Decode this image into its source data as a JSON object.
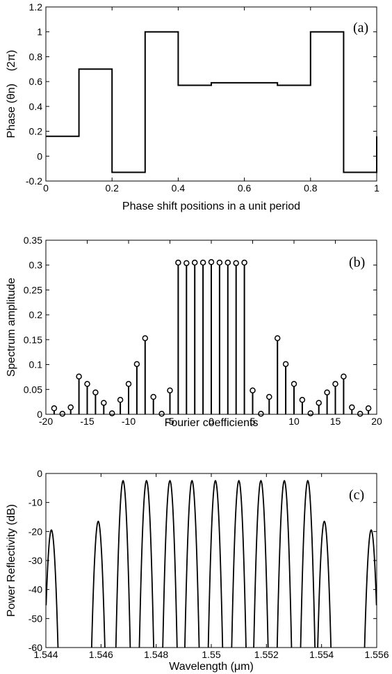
{
  "chart_data": [
    {
      "type": "line",
      "subtype": "step",
      "panel_label": "(a)",
      "xlabel": "Phase shift positions in a unit period",
      "ylabel": "Phase (θn)    (2π)",
      "xlim": [
        0,
        1
      ],
      "ylim": [
        -0.2,
        1.2
      ],
      "xticks": [
        0,
        0.2,
        0.4,
        0.6,
        0.8,
        1
      ],
      "xtick_labels": [
        "0",
        "0.2",
        "0.4",
        "0.6",
        "0.8",
        "1"
      ],
      "yticks": [
        -0.2,
        0,
        0.2,
        0.4,
        0.6,
        0.8,
        1,
        1.2
      ],
      "ytick_labels": [
        "-0.2",
        "0",
        "0.2",
        "0.4",
        "0.6",
        "0.8",
        "1",
        "1.2"
      ],
      "grid": false,
      "series": [
        {
          "x": [
            0,
            0.1,
            0.2,
            0.3,
            0.4,
            0.5,
            0.7,
            0.8,
            0.9,
            1.0
          ],
          "values": [
            0.16,
            0.7,
            -0.13,
            1.0,
            0.57,
            0.59,
            0.57,
            1.0,
            -0.13,
            0.16
          ]
        }
      ]
    },
    {
      "type": "stem",
      "panel_label": "(b)",
      "xlabel": "Fourier coefficients",
      "ylabel": "Spectrum amplitude",
      "xlim": [
        -20,
        20
      ],
      "ylim": [
        0,
        0.35
      ],
      "xticks": [
        -20,
        -15,
        -10,
        -5,
        0,
        5,
        10,
        15,
        20
      ],
      "xtick_labels": [
        "-20",
        "-15",
        "-10",
        "-5",
        "0",
        "5",
        "10",
        "15",
        "20"
      ],
      "yticks": [
        0,
        0.05,
        0.1,
        0.15,
        0.2,
        0.25,
        0.3,
        0.35
      ],
      "ytick_labels": [
        "0",
        "0.05",
        "0.1",
        "0.15",
        "0.2",
        "0.25",
        "0.3",
        "0.35"
      ],
      "grid": false,
      "x": [
        -19,
        -18,
        -17,
        -16,
        -15,
        -14,
        -13,
        -12,
        -11,
        -10,
        -9,
        -8,
        -7,
        -6,
        -5,
        -4,
        -3,
        -2,
        -1,
        0,
        1,
        2,
        3,
        4,
        5,
        6,
        7,
        8,
        9,
        10,
        11,
        12,
        13,
        14,
        15,
        16,
        17,
        18,
        19
      ],
      "values": [
        0.012,
        0.001,
        0.014,
        0.076,
        0.061,
        0.044,
        0.023,
        0.002,
        0.029,
        0.061,
        0.101,
        0.153,
        0.035,
        0.001,
        0.048,
        0.305,
        0.304,
        0.305,
        0.305,
        0.306,
        0.305,
        0.305,
        0.304,
        0.305,
        0.048,
        0.001,
        0.035,
        0.153,
        0.101,
        0.061,
        0.029,
        0.002,
        0.023,
        0.044,
        0.061,
        0.076,
        0.014,
        0.001,
        0.012
      ]
    },
    {
      "type": "line",
      "panel_label": "(c)",
      "xlabel": "Wavelength (μm)",
      "ylabel": "Power Reflectivity (dB)",
      "xlim": [
        1.544,
        1.556
      ],
      "ylim": [
        -60,
        0
      ],
      "xticks": [
        1.544,
        1.546,
        1.548,
        1.55,
        1.552,
        1.554,
        1.556
      ],
      "xtick_labels": [
        "1.544",
        "1.546",
        "1.548",
        "1.55",
        "1.552",
        "1.554",
        "1.556"
      ],
      "yticks": [
        -60,
        -50,
        -40,
        -30,
        -20,
        -10,
        0
      ],
      "ytick_labels": [
        "-60",
        "-50",
        "-40",
        "-30",
        "-20",
        "-10",
        "0"
      ],
      "grid": false,
      "peaks": [
        {
          "center": 1.5442,
          "peak": -19.5,
          "halfwidth": 0.00024
        },
        {
          "center": 1.5459,
          "peak": -16.5,
          "halfwidth": 0.00024
        },
        {
          "center": 1.5468,
          "peak": -2.5,
          "halfwidth": 0.00026
        },
        {
          "center": 1.54765,
          "peak": -2.5,
          "halfwidth": 0.00026
        },
        {
          "center": 1.5485,
          "peak": -2.5,
          "halfwidth": 0.00026
        },
        {
          "center": 1.5493,
          "peak": -2.5,
          "halfwidth": 0.00026
        },
        {
          "center": 1.55015,
          "peak": -2.5,
          "halfwidth": 0.00026
        },
        {
          "center": 1.551,
          "peak": -2.5,
          "halfwidth": 0.00026
        },
        {
          "center": 1.5518,
          "peak": -2.5,
          "halfwidth": 0.00026
        },
        {
          "center": 1.55265,
          "peak": -2.5,
          "halfwidth": 0.00026
        },
        {
          "center": 1.5535,
          "peak": -2.5,
          "halfwidth": 0.00026
        },
        {
          "center": 1.5541,
          "peak": -16.5,
          "halfwidth": 0.00024
        },
        {
          "center": 1.5558,
          "peak": -19.5,
          "halfwidth": 0.00024
        }
      ]
    }
  ]
}
